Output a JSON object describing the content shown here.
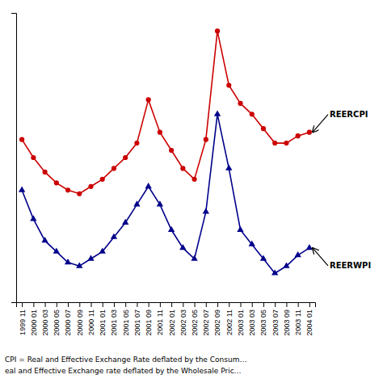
{
  "chart_data": {
    "type": "line",
    "categories": [
      "1999 11",
      "2000 01",
      "2000 03",
      "2000 05",
      "2000 07",
      "2000 09",
      "2000 11",
      "2001 01",
      "2001 03",
      "2001 05",
      "2001 07",
      "2001 09",
      "2001 11",
      "2002 01",
      "2002 03",
      "2002 05",
      "2002 07",
      "2002 09",
      "2002 11",
      "2003 01",
      "2003 03",
      "2003 05",
      "2003 07",
      "2003 09",
      "2003 11",
      "2004 01"
    ],
    "series": [
      {
        "name": "REERCPI",
        "color": "#cc0000",
        "marker": "circle",
        "line_style": "solid",
        "values": [
          105,
          100,
          96,
          93,
          91,
          90,
          92,
          94,
          97,
          100,
          104,
          116,
          107,
          102,
          97,
          94,
          105,
          135,
          120,
          115,
          112,
          108,
          104,
          104,
          106,
          107
        ]
      },
      {
        "name": "REERWPI",
        "color": "#00008B",
        "marker": "triangle",
        "line_style": "solid",
        "values": [
          91,
          83,
          77,
          74,
          71,
          70,
          72,
          74,
          78,
          82,
          87,
          92,
          87,
          80,
          75,
          72,
          85,
          112,
          97,
          80,
          76,
          72,
          68,
          70,
          73,
          75
        ]
      }
    ],
    "ylim": [
      60,
      140
    ],
    "yticks": [],
    "grid": false,
    "tick_labels": "x",
    "annotations": [
      "CPI = Real and Effective Exchange Rate deflated by the Consum…",
      "eal and Effective Exchange rate deflated by the Wholesale Pric…"
    ]
  }
}
